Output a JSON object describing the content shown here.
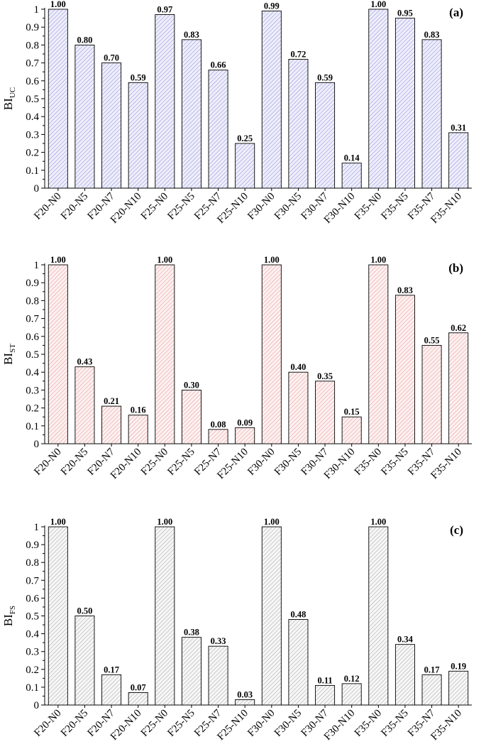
{
  "chart_data": [
    {
      "type": "bar",
      "panel_label": "(a)",
      "ylabel": {
        "main": "BI",
        "sub": "UC"
      },
      "ylim": [
        0,
        1
      ],
      "yticks": [
        "0",
        "0.1",
        "0.2",
        "0.3",
        "0.4",
        "0.5",
        "0.6",
        "0.7",
        "0.8",
        "0.9",
        "1"
      ],
      "categories": [
        "F20-N0",
        "F20-N5",
        "F20-N7",
        "F20-N10",
        "F25-N0",
        "F25-N5",
        "F25-N7",
        "F25-N10",
        "F30-N0",
        "F30-N5",
        "F30-N7",
        "F30-N10",
        "F35-N0",
        "F35-N5",
        "F35-N7",
        "F35-N10"
      ],
      "values": [
        1.0,
        0.8,
        0.7,
        0.59,
        0.97,
        0.83,
        0.66,
        0.25,
        0.99,
        0.72,
        0.59,
        0.14,
        1.0,
        0.95,
        0.83,
        0.31
      ],
      "value_labels": [
        "1.00",
        "0.80",
        "0.70",
        "0.59",
        "0.97",
        "0.83",
        "0.66",
        "0.25",
        "0.99",
        "0.72",
        "0.59",
        "0.14",
        "1.00",
        "0.95",
        "0.83",
        "0.31"
      ],
      "bar_color": "#7f7fd4",
      "bar_fill": "#eeeefb"
    },
    {
      "type": "bar",
      "panel_label": "(b)",
      "ylabel": {
        "main": "BI",
        "sub": "ST"
      },
      "ylim": [
        0,
        1
      ],
      "yticks": [
        "0",
        "0.1",
        "0.2",
        "0.3",
        "0.4",
        "0.5",
        "0.6",
        "0.7",
        "0.8",
        "0.9",
        "1"
      ],
      "categories": [
        "F20-N0",
        "F20-N5",
        "F20-N7",
        "F20-N10",
        "F25-N0",
        "F25-N5",
        "F25-N7",
        "F25-N10",
        "F30-N0",
        "F30-N5",
        "F30-N7",
        "F30-N10",
        "F35-N0",
        "F35-N5",
        "F35-N7",
        "F35-N10"
      ],
      "values": [
        1.0,
        0.43,
        0.21,
        0.16,
        1.0,
        0.3,
        0.08,
        0.09,
        1.0,
        0.4,
        0.35,
        0.15,
        1.0,
        0.83,
        0.55,
        0.62
      ],
      "value_labels": [
        "1.00",
        "0.43",
        "0.21",
        "0.16",
        "1.00",
        "0.30",
        "0.08",
        "0.09",
        "1.00",
        "0.40",
        "0.35",
        "0.15",
        "1.00",
        "0.83",
        "0.55",
        "0.62"
      ],
      "bar_color": "#e08a8a",
      "bar_fill": "#fdf0f0"
    },
    {
      "type": "bar",
      "panel_label": "(c)",
      "ylabel": {
        "main": "BI",
        "sub": "FS"
      },
      "ylim": [
        0,
        1
      ],
      "yticks": [
        "0",
        "0.1",
        "0.2",
        "0.3",
        "0.4",
        "0.5",
        "0.6",
        "0.7",
        "0.8",
        "0.9",
        "1"
      ],
      "categories": [
        "F20-N0",
        "F20-N5",
        "F20-N7",
        "F20-N10",
        "F25-N0",
        "F25-N5",
        "F25-N7",
        "F25-N10",
        "F30-N0",
        "F30-N5",
        "F30-N7",
        "F30-N10",
        "F35-N0",
        "F35-N5",
        "F35-N7",
        "F35-N10"
      ],
      "values": [
        1.0,
        0.5,
        0.17,
        0.07,
        1.0,
        0.38,
        0.33,
        0.03,
        1.0,
        0.48,
        0.11,
        0.12,
        1.0,
        0.34,
        0.17,
        0.19
      ],
      "value_labels": [
        "1.00",
        "0.50",
        "0.17",
        "0.07",
        "1.00",
        "0.38",
        "0.33",
        "0.03",
        "1.00",
        "0.48",
        "0.11",
        "0.12",
        "1.00",
        "0.34",
        "0.17",
        "0.19"
      ],
      "bar_color": "#9a9a9a",
      "bar_fill": "#f6f6f6"
    }
  ]
}
